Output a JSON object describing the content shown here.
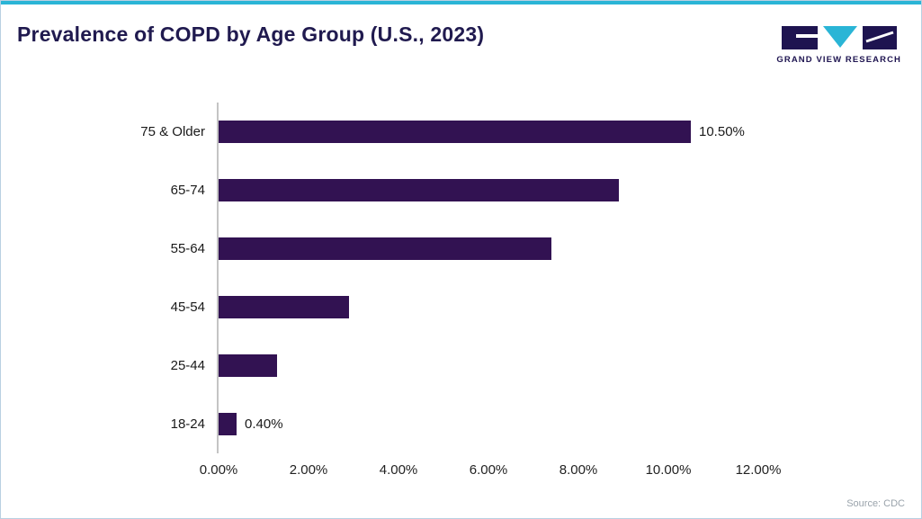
{
  "colors": {
    "accent": "#2ab5d6",
    "bar": "#321252",
    "title": "#201a4f",
    "brand_dark": "#1e1450",
    "brand_teal": "#2ab5d6"
  },
  "brand": {
    "name": "GRAND VIEW RESEARCH"
  },
  "footer": {
    "source": "Source: CDC"
  },
  "chart_data": {
    "type": "bar",
    "orientation": "horizontal",
    "title": "Prevalence of COPD by Age Group (U.S., 2023)",
    "categories": [
      "75 & Older",
      "65-74",
      "55-64",
      "45-54",
      "25-44",
      "18-24"
    ],
    "values": [
      10.5,
      8.9,
      7.4,
      2.9,
      1.3,
      0.4
    ],
    "data_labels": [
      "10.50%",
      "",
      "",
      "",
      "",
      "0.40%"
    ],
    "x_ticks": [
      "0.00%",
      "2.00%",
      "4.00%",
      "6.00%",
      "8.00%",
      "10.00%",
      "12.00%"
    ],
    "x_tick_values": [
      0,
      2,
      4,
      6,
      8,
      10,
      12
    ],
    "xlim": [
      0,
      12
    ],
    "xlabel": "",
    "ylabel": "",
    "grid": false,
    "legend": false
  }
}
